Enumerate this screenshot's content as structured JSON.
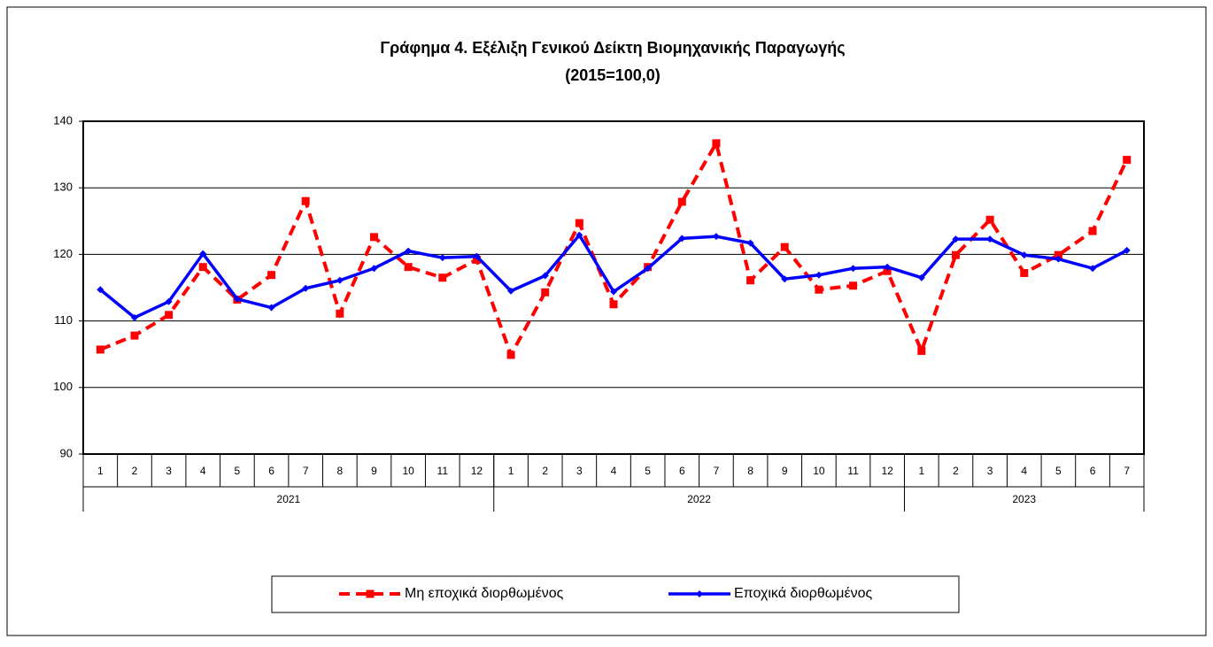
{
  "chart_data": {
    "type": "line",
    "title": "Γράφημα 4. Εξέλιξη Γενικού Δείκτη Βιομηχανικής Παραγωγής",
    "subtitle": "(2015=100,0)",
    "categories": [
      "1",
      "2",
      "3",
      "4",
      "5",
      "6",
      "7",
      "8",
      "9",
      "10",
      "11",
      "12",
      "1",
      "2",
      "3",
      "4",
      "5",
      "6",
      "7",
      "8",
      "9",
      "10",
      "11",
      "12",
      "1",
      "2",
      "3",
      "4",
      "5",
      "6",
      "7"
    ],
    "category_groups": [
      "2021",
      "2022",
      "2023"
    ],
    "series": [
      {
        "name": "Μη εποχικά διορθωμένος",
        "color": "#ff0000",
        "dashed": true,
        "marker": "square",
        "values": [
          105.7,
          107.8,
          110.9,
          118.1,
          113.2,
          116.9,
          128.0,
          111.1,
          122.6,
          118.1,
          116.5,
          119.2,
          104.9,
          114.3,
          124.7,
          112.5,
          118.1,
          127.9,
          136.7,
          116.1,
          121.1,
          114.7,
          115.3,
          117.5,
          105.5,
          119.9,
          125.2,
          117.2,
          119.9,
          123.5,
          134.2
        ]
      },
      {
        "name": "Εποχικά διορθωμένος",
        "color": "#0000ff",
        "dashed": false,
        "marker": "diamond",
        "values": [
          114.7,
          110.5,
          112.9,
          120.1,
          113.3,
          112.0,
          114.9,
          116.1,
          117.9,
          120.5,
          119.5,
          119.7,
          114.5,
          116.8,
          122.9,
          114.4,
          117.9,
          122.4,
          122.7,
          121.7,
          116.3,
          116.9,
          117.9,
          118.1,
          116.5,
          122.3,
          122.3,
          119.9,
          119.3,
          117.9,
          120.6
        ]
      }
    ],
    "ylim": [
      90,
      140
    ],
    "yticks": [
      90,
      100,
      110,
      120,
      130,
      140
    ],
    "grid": true,
    "legend": "bottom"
  }
}
